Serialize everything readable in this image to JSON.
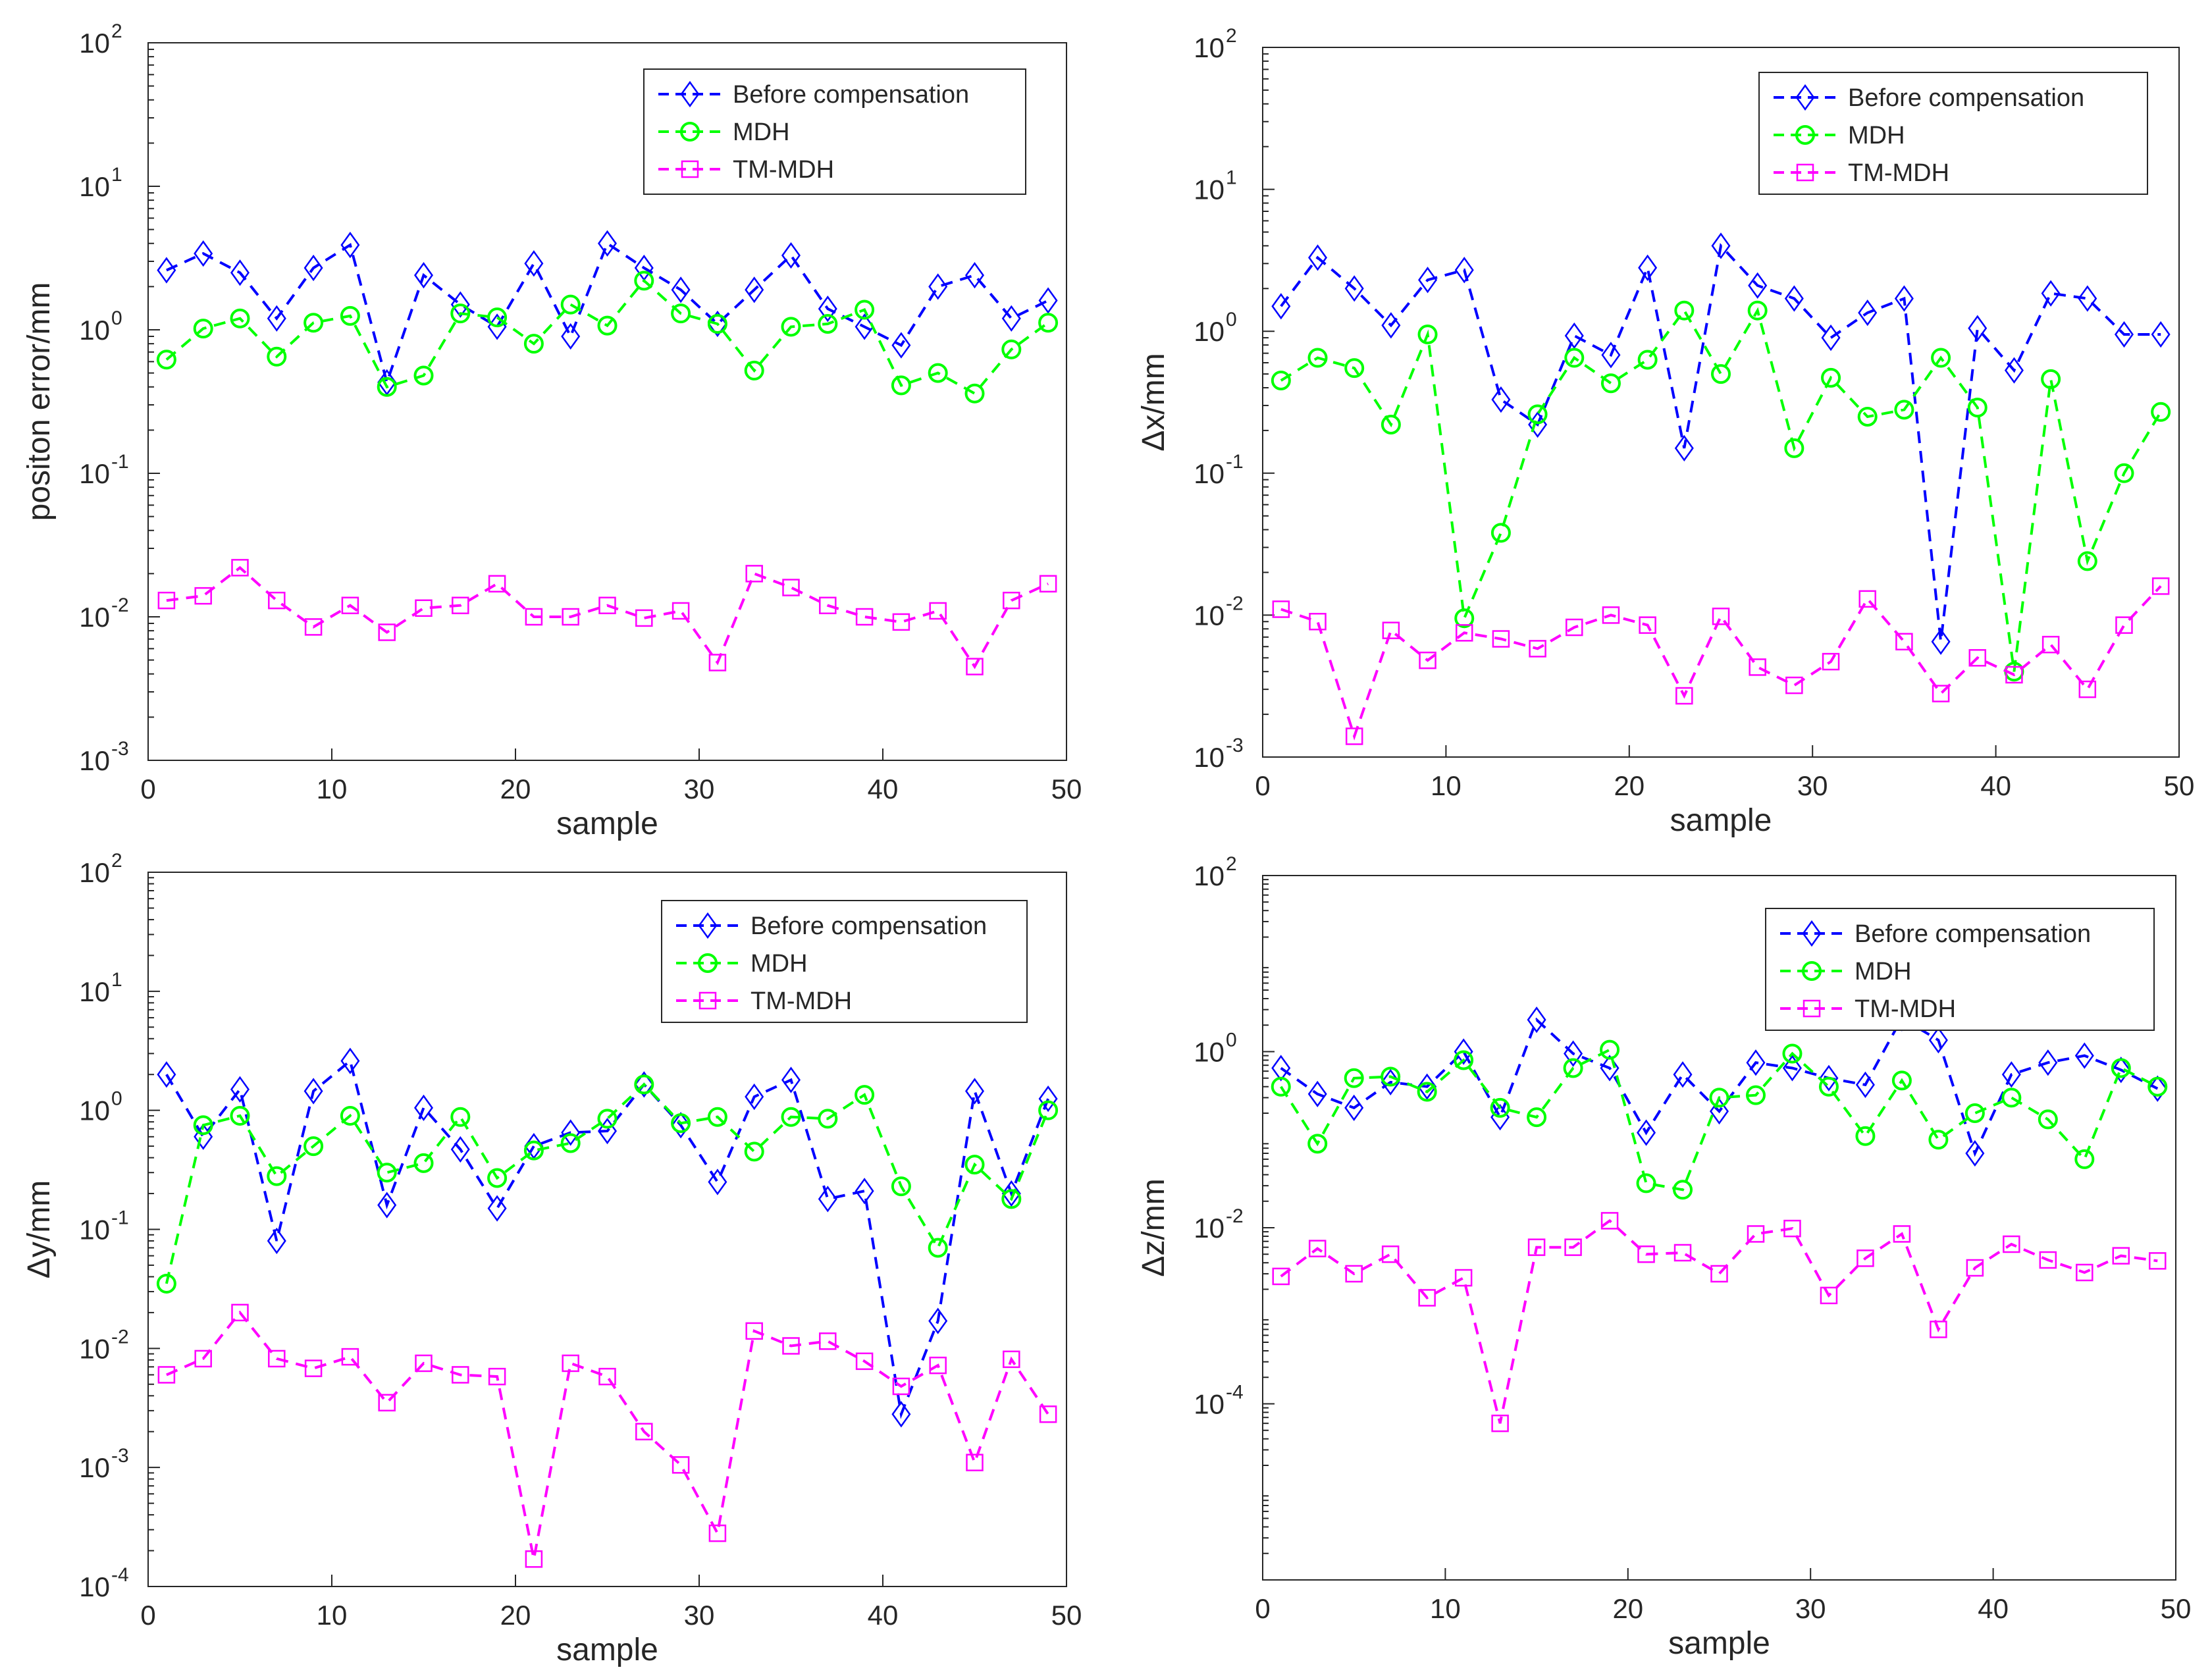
{
  "chart_data": [
    {
      "type": "line",
      "yscale": "log",
      "xlabel": "sample",
      "ylabel": "positon error/mm",
      "xlim": [
        0,
        50
      ],
      "xticks": [
        0,
        10,
        20,
        30,
        40,
        50
      ],
      "ylim_exp": [
        -3,
        2
      ],
      "legend_position": "top-right",
      "x": [
        1,
        3,
        5,
        7,
        9,
        11,
        13,
        15,
        17,
        19,
        21,
        23,
        25,
        27,
        29,
        31,
        33,
        35,
        37,
        39,
        41,
        43,
        45,
        47,
        49
      ],
      "series": [
        {
          "name": "Before compensation",
          "color": "#0000ff",
          "marker": "diamond",
          "values": [
            2.6,
            3.4,
            2.5,
            1.2,
            2.7,
            3.9,
            0.43,
            2.4,
            1.5,
            1.05,
            2.9,
            0.9,
            4.0,
            2.7,
            1.9,
            1.1,
            1.9,
            3.3,
            1.4,
            1.05,
            0.78,
            2.0,
            2.4,
            1.2,
            1.6
          ]
        },
        {
          "name": "MDH",
          "color": "#00ff00",
          "marker": "circle",
          "values": [
            0.62,
            1.02,
            1.2,
            0.65,
            1.12,
            1.25,
            0.4,
            0.48,
            1.3,
            1.22,
            0.8,
            1.5,
            1.07,
            2.2,
            1.3,
            1.1,
            0.52,
            1.05,
            1.1,
            1.38,
            0.41,
            0.5,
            0.36,
            0.73,
            1.12
          ]
        },
        {
          "name": "TM-MDH",
          "color": "#ff00ff",
          "marker": "square",
          "values": [
            0.013,
            0.014,
            0.022,
            0.013,
            0.0085,
            0.012,
            0.0078,
            0.0115,
            0.012,
            0.017,
            0.01,
            0.01,
            0.012,
            0.0098,
            0.011,
            0.0048,
            0.02,
            0.016,
            0.012,
            0.01,
            0.0092,
            0.011,
            0.0045,
            0.013,
            0.017
          ]
        }
      ]
    },
    {
      "type": "line",
      "yscale": "log",
      "xlabel": "sample",
      "ylabel": "Δx/mm",
      "xlim": [
        0,
        50
      ],
      "xticks": [
        0,
        10,
        20,
        30,
        40,
        50
      ],
      "ylim_exp": [
        -3,
        2
      ],
      "legend_position": "top-right",
      "x": [
        1,
        3,
        5,
        7,
        9,
        11,
        13,
        15,
        17,
        19,
        21,
        23,
        25,
        27,
        29,
        31,
        33,
        35,
        37,
        39,
        41,
        43,
        45,
        47,
        49
      ],
      "series": [
        {
          "name": "Before compensation",
          "color": "#0000ff",
          "marker": "diamond",
          "values": [
            1.5,
            3.3,
            2.0,
            1.1,
            2.3,
            2.7,
            0.33,
            0.22,
            0.93,
            0.68,
            2.8,
            0.15,
            4.0,
            2.1,
            1.7,
            0.9,
            1.35,
            1.7,
            0.0065,
            1.05,
            0.53,
            1.85,
            1.7,
            0.95,
            0.95
          ]
        },
        {
          "name": "MDH",
          "color": "#00ff00",
          "marker": "circle",
          "values": [
            0.45,
            0.65,
            0.55,
            0.22,
            0.95,
            0.0095,
            0.038,
            0.26,
            0.65,
            0.43,
            0.63,
            1.4,
            0.5,
            1.4,
            0.15,
            0.47,
            0.25,
            0.28,
            0.65,
            0.29,
            0.004,
            0.46,
            0.024,
            0.1,
            0.27
          ]
        },
        {
          "name": "TM-MDH",
          "color": "#ff00ff",
          "marker": "square",
          "values": [
            0.011,
            0.009,
            0.0014,
            0.0078,
            0.0048,
            0.0075,
            0.0068,
            0.0058,
            0.0082,
            0.01,
            0.0085,
            0.0027,
            0.0098,
            0.0043,
            0.0032,
            0.0047,
            0.013,
            0.0065,
            0.0028,
            0.005,
            0.0038,
            0.0062,
            0.003,
            0.0085,
            0.016
          ]
        }
      ]
    },
    {
      "type": "line",
      "yscale": "log",
      "xlabel": "sample",
      "ylabel": "Δy/mm",
      "xlim": [
        0,
        50
      ],
      "xticks": [
        0,
        10,
        20,
        30,
        40,
        50
      ],
      "ylim_exp": [
        -4,
        2
      ],
      "legend_position": "top-right",
      "x": [
        1,
        3,
        5,
        7,
        9,
        11,
        13,
        15,
        17,
        19,
        21,
        23,
        25,
        27,
        29,
        31,
        33,
        35,
        37,
        39,
        41,
        43,
        45,
        47,
        49
      ],
      "series": [
        {
          "name": "Before compensation",
          "color": "#0000ff",
          "marker": "diamond",
          "values": [
            2.0,
            0.6,
            1.5,
            0.08,
            1.45,
            2.6,
            0.16,
            1.05,
            0.47,
            0.15,
            0.5,
            0.65,
            0.67,
            1.65,
            0.75,
            0.25,
            1.3,
            1.8,
            0.18,
            0.21,
            0.0028,
            0.017,
            1.45,
            0.2,
            1.25
          ]
        },
        {
          "name": "MDH",
          "color": "#00ff00",
          "marker": "circle",
          "values": [
            0.035,
            0.75,
            0.9,
            0.28,
            0.5,
            0.9,
            0.3,
            0.36,
            0.88,
            0.27,
            0.46,
            0.53,
            0.85,
            1.65,
            0.78,
            0.88,
            0.45,
            0.88,
            0.85,
            1.35,
            0.23,
            0.07,
            0.35,
            0.18,
            1.0
          ]
        },
        {
          "name": "TM-MDH",
          "color": "#ff00ff",
          "marker": "square",
          "values": [
            0.006,
            0.0082,
            0.02,
            0.0082,
            0.0068,
            0.0085,
            0.0035,
            0.0075,
            0.006,
            0.0058,
            0.00017,
            0.0075,
            0.0058,
            0.002,
            0.00105,
            0.00028,
            0.014,
            0.0105,
            0.0115,
            0.0078,
            0.0048,
            0.0072,
            0.0011,
            0.0081,
            0.0028
          ]
        }
      ]
    },
    {
      "type": "line",
      "yscale": "log",
      "xlabel": "sample",
      "ylabel": "Δz/mm",
      "xlim": [
        0,
        50
      ],
      "xticks": [
        0,
        10,
        20,
        30,
        40,
        50
      ],
      "ylim_exp": [
        -6,
        2
      ],
      "yticks_exp": [
        -4,
        -2,
        0,
        2
      ],
      "legend_position": "top-right",
      "x": [
        1,
        3,
        5,
        7,
        9,
        11,
        13,
        15,
        17,
        19,
        21,
        23,
        25,
        27,
        29,
        31,
        33,
        35,
        37,
        39,
        41,
        43,
        45,
        47,
        49
      ],
      "series": [
        {
          "name": "Before compensation",
          "color": "#0000ff",
          "marker": "diamond",
          "values": [
            0.65,
            0.33,
            0.23,
            0.45,
            0.4,
            1.0,
            0.18,
            2.3,
            0.95,
            0.65,
            0.12,
            0.55,
            0.21,
            0.75,
            0.65,
            0.5,
            0.42,
            2.4,
            1.35,
            0.07,
            0.55,
            0.75,
            0.9,
            0.62,
            0.38
          ]
        },
        {
          "name": "MDH",
          "color": "#00ff00",
          "marker": "circle",
          "values": [
            0.4,
            0.09,
            0.5,
            0.52,
            0.35,
            0.8,
            0.23,
            0.18,
            0.65,
            1.05,
            0.032,
            0.027,
            0.3,
            0.32,
            0.95,
            0.4,
            0.11,
            0.47,
            0.1,
            0.2,
            0.3,
            0.17,
            0.06,
            0.65,
            0.4
          ]
        },
        {
          "name": "TM-MDH",
          "color": "#ff00ff",
          "marker": "square",
          "values": [
            0.0028,
            0.0058,
            0.003,
            0.005,
            0.0016,
            0.0027,
            6e-05,
            0.006,
            0.006,
            0.012,
            0.005,
            0.0052,
            0.003,
            0.0085,
            0.0098,
            0.0017,
            0.0045,
            0.0085,
            0.0007,
            0.0035,
            0.0065,
            0.0043,
            0.0031,
            0.0048,
            0.0042
          ]
        }
      ]
    }
  ]
}
